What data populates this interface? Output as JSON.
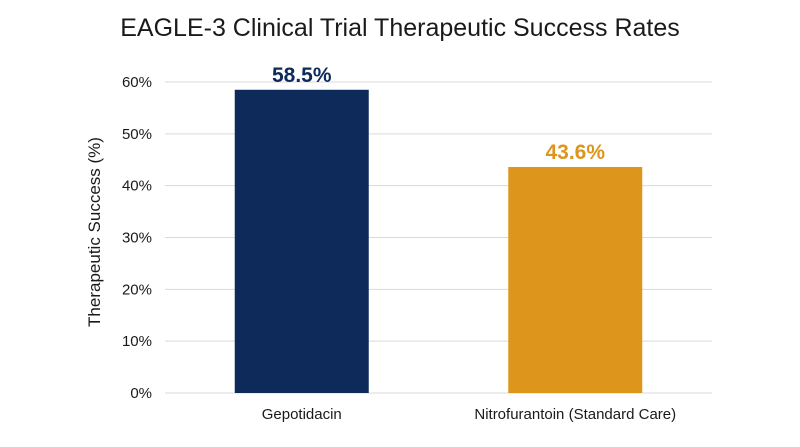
{
  "chart_data": {
    "type": "bar",
    "title": "EAGLE-3 Clinical Trial Therapeutic Success Rates",
    "xlabel": "",
    "ylabel": "Therapeutic Success (%)",
    "ylim": [
      0,
      60
    ],
    "yticks": [
      0,
      10,
      20,
      30,
      40,
      50,
      60
    ],
    "ytick_labels": [
      "0%",
      "10%",
      "20%",
      "30%",
      "40%",
      "50%",
      "60%"
    ],
    "categories": [
      "Gepotidacin",
      "Nitrofurantoin (Standard Care)"
    ],
    "values": [
      58.5,
      43.6
    ],
    "data_labels": [
      "58.5%",
      "43.6%"
    ],
    "bar_colors": [
      "#0d2a5a",
      "#dd951b"
    ],
    "grid": true,
    "legend": "none"
  }
}
